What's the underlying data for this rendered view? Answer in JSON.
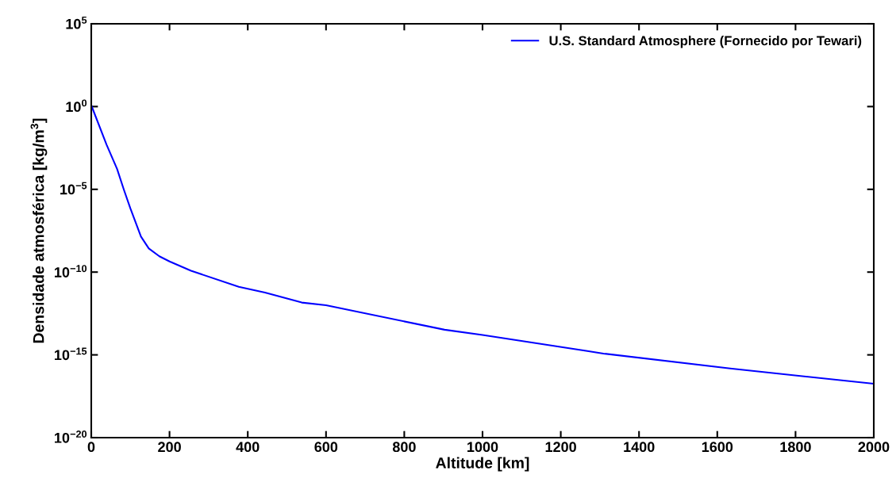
{
  "chart_data": {
    "type": "line",
    "xlabel": "Altitude [km]",
    "ylabel": "Densidade atmosférica [kg/m$^{3}$]",
    "x": [
      0,
      39,
      66,
      83,
      100,
      127,
      147,
      174,
      200,
      255,
      377,
      444,
      538,
      600,
      903,
      1000,
      1268,
      1309,
      1633,
      2000
    ],
    "series": [
      {
        "name": "U.S. Standard Atmosphere (Fornecido por Tewari)",
        "color": "#0000ff",
        "values": [
          1.2,
          0.005,
          0.00017,
          1e-05,
          7e-07,
          1.4e-08,
          2.7e-09,
          9e-10,
          4.4e-10,
          1.2e-10,
          1.3e-11,
          5.8e-12,
          1.45e-12,
          1e-12,
          3.3e-14,
          1.6e-14,
          1.7e-15,
          1.2e-15,
          1.5e-16,
          1.8e-17
        ]
      }
    ],
    "log": "y",
    "xlim": [
      0,
      2000
    ],
    "xticks": [
      0,
      200,
      400,
      600,
      800,
      1000,
      1200,
      1400,
      1600,
      1800,
      2000
    ],
    "ylim": [
      1e-20,
      100000.0
    ],
    "yticks": [
      {
        "value": 1e-20,
        "label": "10$^{−20}$"
      },
      {
        "value": 1e-15,
        "label": "10$^{−15}$"
      },
      {
        "value": 1e-10,
        "label": "10$^{−10}$"
      },
      {
        "value": 1e-05,
        "label": "10$^{−5}$"
      },
      {
        "value": 1,
        "label": "10$^{0}$"
      },
      {
        "value": 100000.0,
        "label": "10$^{5}$"
      }
    ],
    "legend": "top right",
    "grid": false,
    "line_style": "solid",
    "marker": "none"
  }
}
